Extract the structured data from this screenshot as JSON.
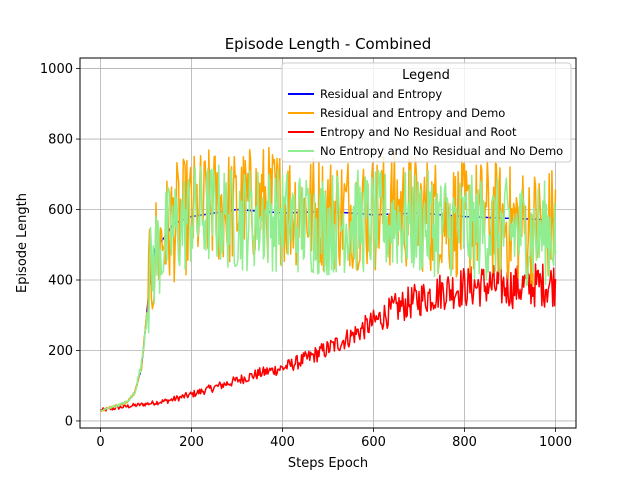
{
  "chart_data": {
    "type": "line",
    "title": "Episode Length - Combined",
    "xlabel": "Steps Epoch",
    "ylabel": "Episode Length",
    "xlim": [
      -45,
      1045
    ],
    "ylim": [
      -20,
      1030
    ],
    "xticks": [
      0,
      200,
      400,
      600,
      800,
      1000
    ],
    "yticks": [
      0,
      200,
      400,
      600,
      800,
      1000
    ],
    "grid": true,
    "legend": {
      "title": "Legend",
      "placement": "top-right"
    },
    "series": [
      {
        "name": "Residual and Entropy",
        "color": "#0000ff",
        "x": [
          0,
          20,
          40,
          60,
          75,
          90,
          100,
          110,
          120,
          140,
          160,
          200,
          300,
          400,
          500,
          600,
          700,
          800,
          900,
          1000
        ],
        "y": [
          30,
          38,
          45,
          55,
          80,
          150,
          280,
          420,
          490,
          520,
          560,
          580,
          600,
          590,
          595,
          585,
          590,
          580,
          575,
          570
        ]
      },
      {
        "name": "Residual and Entropy and Demo",
        "color": "#ffa500",
        "x": [
          0,
          20,
          40,
          60,
          75,
          90,
          100,
          110,
          120,
          140,
          160,
          200,
          250,
          300,
          350,
          400,
          450,
          500,
          550,
          600,
          650,
          700,
          750,
          800,
          850,
          900,
          950,
          1000
        ],
        "y": [
          28,
          38,
          45,
          55,
          80,
          150,
          270,
          400,
          480,
          520,
          560,
          590,
          610,
          600,
          620,
          610,
          600,
          590,
          600,
          590,
          600,
          590,
          580,
          570,
          580,
          560,
          550,
          560
        ],
        "noise": 170
      },
      {
        "name": "Entropy and No Residual and Root",
        "color": "#ff0000",
        "x": [
          0,
          50,
          100,
          150,
          200,
          250,
          300,
          350,
          400,
          450,
          500,
          550,
          600,
          650,
          700,
          750,
          800,
          850,
          900,
          950,
          1000
        ],
        "y": [
          30,
          40,
          48,
          58,
          75,
          95,
          115,
          135,
          150,
          175,
          205,
          240,
          280,
          320,
          345,
          370,
          380,
          385,
          380,
          385,
          390
        ],
        "noise": [
          6,
          6,
          6,
          8,
          10,
          12,
          14,
          16,
          18,
          22,
          26,
          30,
          36,
          45,
          50,
          55,
          60,
          62,
          62,
          65,
          65
        ]
      },
      {
        "name": "No Entropy and No Residual and No Demo",
        "color": "#90ee90",
        "x": [
          0,
          20,
          40,
          60,
          75,
          90,
          100,
          110,
          120,
          140,
          160,
          200,
          250,
          300,
          350,
          400,
          450,
          500,
          550,
          600,
          650,
          700,
          750,
          800,
          850,
          900,
          950,
          1000
        ],
        "y": [
          28,
          38,
          45,
          55,
          80,
          160,
          280,
          410,
          470,
          510,
          540,
          580,
          590,
          570,
          580,
          570,
          560,
          560,
          570,
          560,
          570,
          560,
          560,
          550,
          545,
          540,
          530,
          540
        ],
        "noise": 150
      }
    ]
  }
}
